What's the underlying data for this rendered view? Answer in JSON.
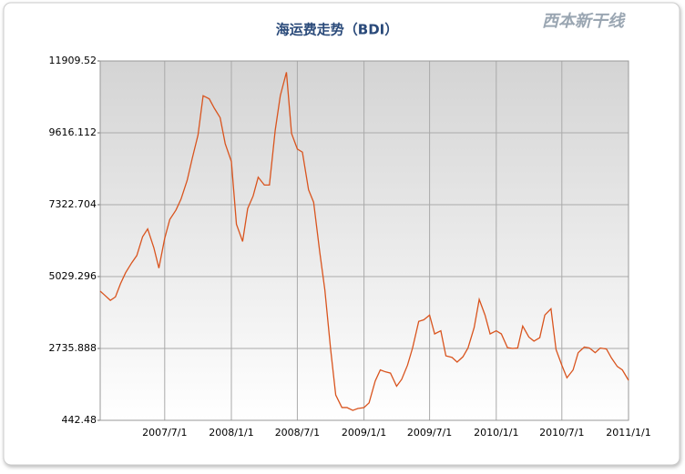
{
  "chart_data": {
    "type": "line",
    "title": "海运费走势（BDI）",
    "logo": "西本新干线",
    "color": "#d9541e",
    "grid": true,
    "xlim": [
      "2007/1/4",
      "2011/1/1"
    ],
    "xticks": [
      "2007/7/1",
      "2008/1/1",
      "2008/7/1",
      "2009/1/1",
      "2009/7/1",
      "2010/1/1",
      "2010/7/1",
      "2011/1/1"
    ],
    "ylim": [
      442.48,
      11909.52
    ],
    "yticks": [
      442.48,
      2735.888,
      5029.296,
      7322.704,
      9616.112,
      11909.52
    ],
    "x": [
      "2007/1/4",
      "2007/1/15",
      "2007/2/1",
      "2007/2/15",
      "2007/3/1",
      "2007/3/15",
      "2007/4/1",
      "2007/4/15",
      "2007/5/1",
      "2007/5/15",
      "2007/6/1",
      "2007/6/15",
      "2007/7/1",
      "2007/7/15",
      "2007/8/1",
      "2007/8/15",
      "2007/9/1",
      "2007/9/15",
      "2007/10/1",
      "2007/10/15",
      "2007/11/1",
      "2007/11/15",
      "2007/12/1",
      "2007/12/15",
      "2008/1/1",
      "2008/1/15",
      "2008/2/1",
      "2008/2/15",
      "2008/3/1",
      "2008/3/15",
      "2008/4/1",
      "2008/4/15",
      "2008/5/1",
      "2008/5/15",
      "2008/6/1",
      "2008/6/15",
      "2008/7/1",
      "2008/7/15",
      "2008/8/1",
      "2008/8/15",
      "2008/9/1",
      "2008/9/15",
      "2008/10/1",
      "2008/10/15",
      "2008/11/1",
      "2008/11/15",
      "2008/12/1",
      "2008/12/15",
      "2009/1/1",
      "2009/1/15",
      "2009/2/1",
      "2009/2/15",
      "2009/3/1",
      "2009/3/15",
      "2009/4/1",
      "2009/4/15",
      "2009/5/1",
      "2009/5/15",
      "2009/6/1",
      "2009/6/15",
      "2009/7/1",
      "2009/7/15",
      "2009/8/1",
      "2009/8/15",
      "2009/9/1",
      "2009/9/15",
      "2009/10/1",
      "2009/10/15",
      "2009/11/1",
      "2009/11/15",
      "2009/12/1",
      "2009/12/15",
      "2010/1/1",
      "2010/1/15",
      "2010/2/1",
      "2010/2/15",
      "2010/3/1",
      "2010/3/15",
      "2010/4/1",
      "2010/4/15",
      "2010/5/1",
      "2010/5/15",
      "2010/6/1",
      "2010/6/15",
      "2010/7/1",
      "2010/7/15",
      "2010/8/1",
      "2010/8/15",
      "2010/9/1",
      "2010/9/15",
      "2010/10/1",
      "2010/10/15",
      "2010/11/1",
      "2010/11/15",
      "2010/12/1",
      "2010/12/15",
      "2011/1/1"
    ],
    "values": [
      4565,
      4450,
      4270,
      4380,
      4800,
      5150,
      5470,
      5700,
      6300,
      6550,
      5950,
      5300,
      6250,
      6850,
      7150,
      7500,
      8100,
      8800,
      9550,
      10800,
      10700,
      10400,
      10100,
      9270,
      8700,
      6700,
      6150,
      7200,
      7600,
      8200,
      7950,
      7950,
      9700,
      10800,
      11550,
      9600,
      9100,
      9000,
      7800,
      7400,
      5800,
      4600,
      2700,
      1250,
      850,
      850,
      760,
      820,
      850,
      1000,
      1700,
      2050,
      1990,
      1950,
      1530,
      1750,
      2200,
      2750,
      3600,
      3650,
      3800,
      3200,
      3300,
      2500,
      2450,
      2300,
      2470,
      2750,
      3400,
      4300,
      3800,
      3200,
      3300,
      3200,
      2760,
      2735,
      2750,
      3450,
      3100,
      2970,
      3080,
      3800,
      4000,
      2700,
      2200,
      1800,
      2050,
      2600,
      2780,
      2750,
      2600,
      2750,
      2720,
      2430,
      2160,
      2050,
      1720
    ]
  }
}
